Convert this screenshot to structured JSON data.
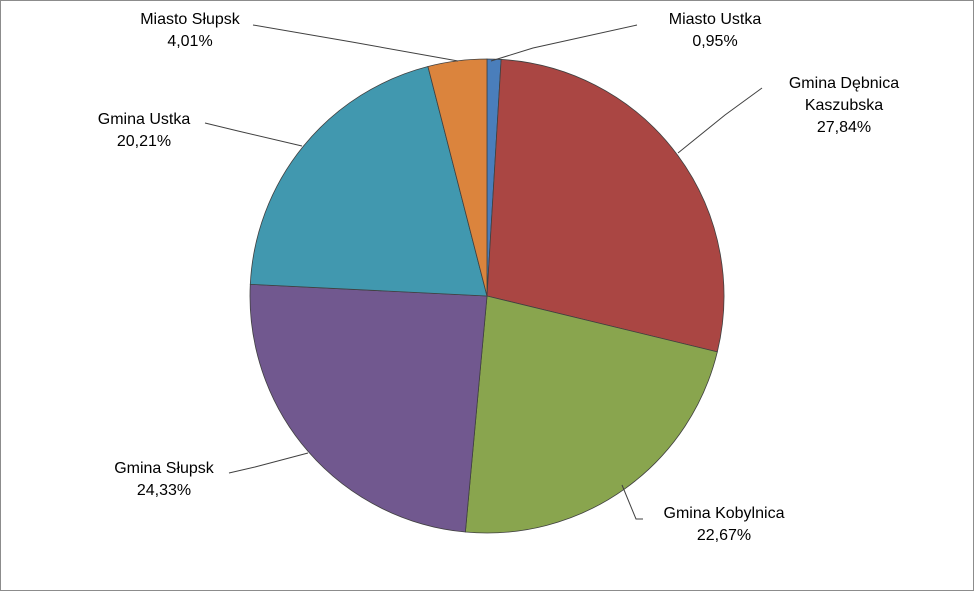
{
  "chart_data": {
    "type": "pie",
    "title": "",
    "start_angle_deg": 0,
    "direction": "clockwise",
    "legend": "none",
    "slices": [
      {
        "label_lines": [
          "Miasto Ustka"
        ],
        "percent_label": "0,95%",
        "value": 0.95,
        "color": "#4a7ebb"
      },
      {
        "label_lines": [
          "Gmina Dębnica",
          "Kaszubska"
        ],
        "percent_label": "27,84%",
        "value": 27.84,
        "color": "#aa4643"
      },
      {
        "label_lines": [
          "Gmina Kobylnica"
        ],
        "percent_label": "22,67%",
        "value": 22.67,
        "color": "#89a54e"
      },
      {
        "label_lines": [
          "Gmina Słupsk"
        ],
        "percent_label": "24,33%",
        "value": 24.33,
        "color": "#71588f"
      },
      {
        "label_lines": [
          "Gmina Ustka"
        ],
        "percent_label": "20,21%",
        "value": 20.21,
        "color": "#4198af"
      },
      {
        "label_lines": [
          "Miasto Słupsk"
        ],
        "percent_label": "4,01%",
        "value": 4.01,
        "color": "#db843d"
      }
    ]
  }
}
